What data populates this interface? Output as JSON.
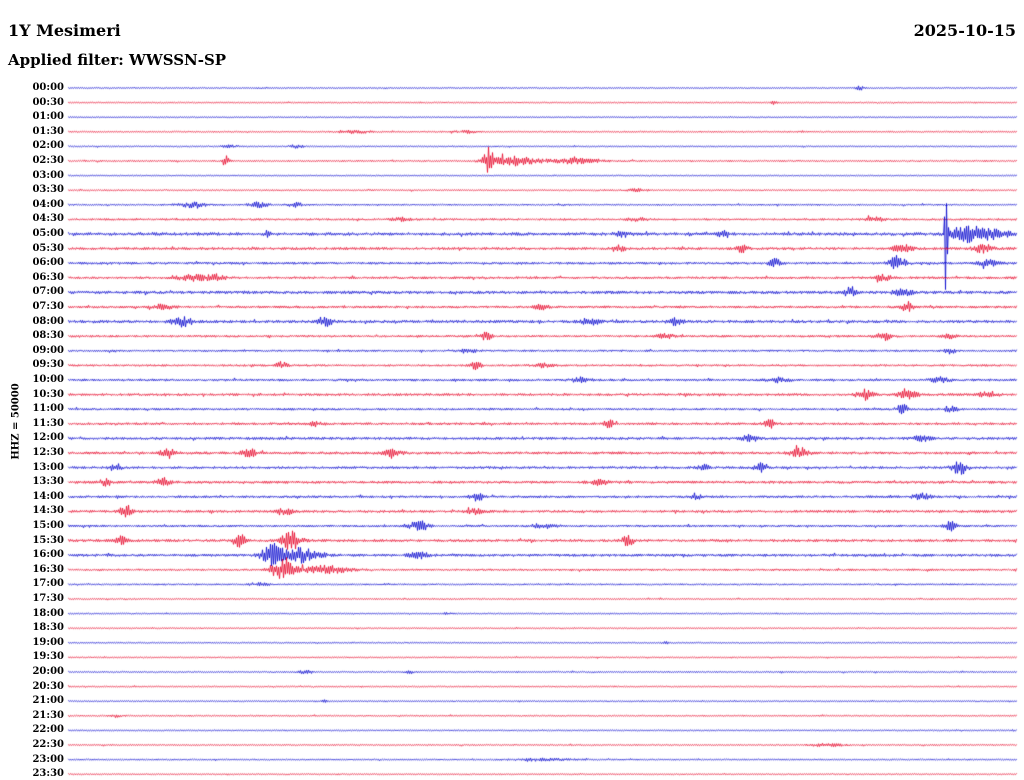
{
  "chart_data": {
    "type": "line",
    "title": "1Y Mesimeri",
    "date": "2025-10-15",
    "filter_label": "Applied filter: WWSSN-SP",
    "scale_label": "HHZ = 50000",
    "row_minutes": 30,
    "start_time": "00:00",
    "end_time": "24:00",
    "legend": "none",
    "grid": "off",
    "colors": {
      "blue": "#0000cd",
      "red": "#e60026"
    },
    "rows": [
      {
        "time": "00:00",
        "color": "blue",
        "noise": 0.6,
        "events": [
          {
            "pos": 0.835,
            "amp": 2.5,
            "width": 0.004
          }
        ]
      },
      {
        "time": "00:30",
        "color": "red",
        "noise": 0.6,
        "events": [
          {
            "pos": 0.745,
            "amp": 3,
            "width": 0.003
          }
        ]
      },
      {
        "time": "01:00",
        "color": "blue",
        "noise": 0.5,
        "events": []
      },
      {
        "time": "01:30",
        "color": "red",
        "noise": 0.7,
        "events": [
          {
            "pos": 0.3,
            "amp": 1.3,
            "width": 0.02
          },
          {
            "pos": 0.42,
            "amp": 1.3,
            "width": 0.012
          }
        ]
      },
      {
        "time": "02:00",
        "color": "blue",
        "noise": 0.6,
        "events": [
          {
            "pos": 0.17,
            "amp": 1.2,
            "width": 0.01
          },
          {
            "pos": 0.24,
            "amp": 1.4,
            "width": 0.008
          }
        ]
      },
      {
        "time": "02:30",
        "color": "red",
        "noise": 0.8,
        "events": [
          {
            "pos": 0.166,
            "amp": 5,
            "width": 0.004
          },
          {
            "pos": 0.443,
            "amp": 13,
            "width": 0.006
          },
          {
            "pos": 0.47,
            "amp": 5,
            "width": 0.02
          },
          {
            "pos": 0.53,
            "amp": 2.5,
            "width": 0.03
          }
        ]
      },
      {
        "time": "03:00",
        "color": "blue",
        "noise": 0.5,
        "events": []
      },
      {
        "time": "03:30",
        "color": "red",
        "noise": 0.7,
        "events": [
          {
            "pos": 0.6,
            "amp": 1.2,
            "width": 0.01
          }
        ]
      },
      {
        "time": "04:00",
        "color": "blue",
        "noise": 0.8,
        "events": [
          {
            "pos": 0.13,
            "amp": 2.5,
            "width": 0.015
          },
          {
            "pos": 0.2,
            "amp": 2.5,
            "width": 0.01
          },
          {
            "pos": 0.24,
            "amp": 2,
            "width": 0.008
          }
        ]
      },
      {
        "time": "04:30",
        "color": "red",
        "noise": 1.0,
        "events": [
          {
            "pos": 0.35,
            "amp": 2,
            "width": 0.01
          },
          {
            "pos": 0.6,
            "amp": 1.5,
            "width": 0.01
          },
          {
            "pos": 0.85,
            "amp": 2,
            "width": 0.01
          }
        ]
      },
      {
        "time": "05:00",
        "color": "blue",
        "noise": 1.5,
        "events": [
          {
            "pos": 0.21,
            "amp": 3,
            "width": 0.004
          },
          {
            "pos": 0.585,
            "amp": 2.5,
            "width": 0.008
          },
          {
            "pos": 0.69,
            "amp": 3,
            "width": 0.006
          },
          {
            "pos": 0.926,
            "amp": 130,
            "width": 0.0015
          },
          {
            "pos": 0.945,
            "amp": 8,
            "width": 0.012
          },
          {
            "pos": 0.97,
            "amp": 6,
            "width": 0.02
          }
        ]
      },
      {
        "time": "05:30",
        "color": "red",
        "noise": 1.3,
        "events": [
          {
            "pos": 0.58,
            "amp": 3.5,
            "width": 0.006
          },
          {
            "pos": 0.71,
            "amp": 3.5,
            "width": 0.006
          },
          {
            "pos": 0.88,
            "amp": 4,
            "width": 0.01
          },
          {
            "pos": 0.965,
            "amp": 4,
            "width": 0.01
          }
        ]
      },
      {
        "time": "06:00",
        "color": "blue",
        "noise": 1.2,
        "events": [
          {
            "pos": 0.745,
            "amp": 4,
            "width": 0.006
          },
          {
            "pos": 0.875,
            "amp": 8,
            "width": 0.008
          },
          {
            "pos": 0.97,
            "amp": 3,
            "width": 0.01
          }
        ]
      },
      {
        "time": "06:30",
        "color": "red",
        "noise": 1.2,
        "events": [
          {
            "pos": 0.13,
            "amp": 3,
            "width": 0.015
          },
          {
            "pos": 0.155,
            "amp": 3,
            "width": 0.01
          },
          {
            "pos": 0.86,
            "amp": 3,
            "width": 0.008
          }
        ]
      },
      {
        "time": "07:00",
        "color": "blue",
        "noise": 1.5,
        "events": [
          {
            "pos": 0.825,
            "amp": 5,
            "width": 0.006
          },
          {
            "pos": 0.88,
            "amp": 3,
            "width": 0.01
          }
        ]
      },
      {
        "time": "07:30",
        "color": "red",
        "noise": 1.2,
        "events": [
          {
            "pos": 0.1,
            "amp": 2.5,
            "width": 0.01
          },
          {
            "pos": 0.5,
            "amp": 2.5,
            "width": 0.008
          },
          {
            "pos": 0.885,
            "amp": 6,
            "width": 0.005
          }
        ]
      },
      {
        "time": "08:00",
        "color": "blue",
        "noise": 1.4,
        "events": [
          {
            "pos": 0.12,
            "amp": 5,
            "width": 0.01
          },
          {
            "pos": 0.27,
            "amp": 5,
            "width": 0.008
          },
          {
            "pos": 0.55,
            "amp": 3,
            "width": 0.01
          },
          {
            "pos": 0.64,
            "amp": 3,
            "width": 0.008
          }
        ]
      },
      {
        "time": "08:30",
        "color": "red",
        "noise": 1.1,
        "events": [
          {
            "pos": 0.44,
            "amp": 4,
            "width": 0.006
          },
          {
            "pos": 0.63,
            "amp": 2.5,
            "width": 0.008
          },
          {
            "pos": 0.86,
            "amp": 4,
            "width": 0.008
          },
          {
            "pos": 0.93,
            "amp": 3,
            "width": 0.006
          }
        ]
      },
      {
        "time": "09:00",
        "color": "blue",
        "noise": 1.0,
        "events": [
          {
            "pos": 0.42,
            "amp": 2,
            "width": 0.01
          },
          {
            "pos": 0.93,
            "amp": 3,
            "width": 0.005
          }
        ]
      },
      {
        "time": "09:30",
        "color": "red",
        "noise": 1.0,
        "events": [
          {
            "pos": 0.225,
            "amp": 3.5,
            "width": 0.006
          },
          {
            "pos": 0.43,
            "amp": 4,
            "width": 0.005
          },
          {
            "pos": 0.5,
            "amp": 2,
            "width": 0.01
          }
        ]
      },
      {
        "time": "10:00",
        "color": "blue",
        "noise": 1.2,
        "events": [
          {
            "pos": 0.54,
            "amp": 3,
            "width": 0.008
          },
          {
            "pos": 0.75,
            "amp": 2.5,
            "width": 0.01
          },
          {
            "pos": 0.92,
            "amp": 2.5,
            "width": 0.01
          }
        ]
      },
      {
        "time": "10:30",
        "color": "red",
        "noise": 1.2,
        "events": [
          {
            "pos": 0.84,
            "amp": 6,
            "width": 0.008
          },
          {
            "pos": 0.885,
            "amp": 4,
            "width": 0.01
          },
          {
            "pos": 0.97,
            "amp": 3,
            "width": 0.01
          }
        ]
      },
      {
        "time": "11:00",
        "color": "blue",
        "noise": 1.1,
        "events": [
          {
            "pos": 0.88,
            "amp": 5,
            "width": 0.006
          },
          {
            "pos": 0.93,
            "amp": 3,
            "width": 0.008
          }
        ]
      },
      {
        "time": "11:30",
        "color": "red",
        "noise": 1.2,
        "events": [
          {
            "pos": 0.26,
            "amp": 2.5,
            "width": 0.008
          },
          {
            "pos": 0.57,
            "amp": 3.5,
            "width": 0.006
          },
          {
            "pos": 0.74,
            "amp": 4,
            "width": 0.006
          }
        ]
      },
      {
        "time": "12:00",
        "color": "blue",
        "noise": 1.3,
        "events": [
          {
            "pos": 0.72,
            "amp": 4,
            "width": 0.008
          },
          {
            "pos": 0.9,
            "amp": 2.5,
            "width": 0.01
          }
        ]
      },
      {
        "time": "12:30",
        "color": "red",
        "noise": 1.3,
        "events": [
          {
            "pos": 0.105,
            "amp": 5,
            "width": 0.008
          },
          {
            "pos": 0.19,
            "amp": 4,
            "width": 0.008
          },
          {
            "pos": 0.34,
            "amp": 3,
            "width": 0.01
          },
          {
            "pos": 0.77,
            "amp": 4,
            "width": 0.01
          }
        ]
      },
      {
        "time": "13:00",
        "color": "blue",
        "noise": 1.2,
        "events": [
          {
            "pos": 0.05,
            "amp": 3.5,
            "width": 0.006
          },
          {
            "pos": 0.67,
            "amp": 3,
            "width": 0.006
          },
          {
            "pos": 0.73,
            "amp": 4.5,
            "width": 0.006
          },
          {
            "pos": 0.94,
            "amp": 7,
            "width": 0.008
          }
        ]
      },
      {
        "time": "13:30",
        "color": "red",
        "noise": 1.3,
        "events": [
          {
            "pos": 0.04,
            "amp": 4,
            "width": 0.006
          },
          {
            "pos": 0.1,
            "amp": 4,
            "width": 0.008
          },
          {
            "pos": 0.56,
            "amp": 2.5,
            "width": 0.01
          }
        ]
      },
      {
        "time": "14:00",
        "color": "blue",
        "noise": 1.2,
        "events": [
          {
            "pos": 0.43,
            "amp": 4,
            "width": 0.006
          },
          {
            "pos": 0.66,
            "amp": 3.5,
            "width": 0.006
          },
          {
            "pos": 0.9,
            "amp": 4,
            "width": 0.008
          }
        ]
      },
      {
        "time": "14:30",
        "color": "red",
        "noise": 1.2,
        "events": [
          {
            "pos": 0.06,
            "amp": 6,
            "width": 0.006
          },
          {
            "pos": 0.23,
            "amp": 3.5,
            "width": 0.008
          },
          {
            "pos": 0.43,
            "amp": 2.5,
            "width": 0.01
          }
        ]
      },
      {
        "time": "15:00",
        "color": "blue",
        "noise": 1.1,
        "events": [
          {
            "pos": 0.37,
            "amp": 5,
            "width": 0.01
          },
          {
            "pos": 0.5,
            "amp": 2.5,
            "width": 0.01
          },
          {
            "pos": 0.93,
            "amp": 4.5,
            "width": 0.006
          }
        ]
      },
      {
        "time": "15:30",
        "color": "red",
        "noise": 1.3,
        "events": [
          {
            "pos": 0.055,
            "amp": 4,
            "width": 0.006
          },
          {
            "pos": 0.18,
            "amp": 7,
            "width": 0.006
          },
          {
            "pos": 0.235,
            "amp": 9,
            "width": 0.01
          },
          {
            "pos": 0.59,
            "amp": 5,
            "width": 0.006
          }
        ]
      },
      {
        "time": "16:00",
        "color": "blue",
        "noise": 1.3,
        "events": [
          {
            "pos": 0.215,
            "amp": 13,
            "width": 0.01
          },
          {
            "pos": 0.245,
            "amp": 7,
            "width": 0.02
          },
          {
            "pos": 0.37,
            "amp": 3,
            "width": 0.01
          }
        ]
      },
      {
        "time": "16:30",
        "color": "red",
        "noise": 1.0,
        "events": [
          {
            "pos": 0.225,
            "amp": 10,
            "width": 0.012
          },
          {
            "pos": 0.27,
            "amp": 4,
            "width": 0.025
          }
        ]
      },
      {
        "time": "17:00",
        "color": "blue",
        "noise": 0.8,
        "events": [
          {
            "pos": 0.2,
            "amp": 1.5,
            "width": 0.01
          }
        ]
      },
      {
        "time": "17:30",
        "color": "red",
        "noise": 0.7,
        "events": []
      },
      {
        "time": "18:00",
        "color": "blue",
        "noise": 0.6,
        "events": [
          {
            "pos": 0.4,
            "amp": 1,
            "width": 0.005
          }
        ]
      },
      {
        "time": "18:30",
        "color": "red",
        "noise": 0.6,
        "events": []
      },
      {
        "time": "19:00",
        "color": "blue",
        "noise": 0.6,
        "events": [
          {
            "pos": 0.63,
            "amp": 1,
            "width": 0.005
          }
        ]
      },
      {
        "time": "19:30",
        "color": "red",
        "noise": 0.6,
        "events": []
      },
      {
        "time": "20:00",
        "color": "blue",
        "noise": 0.7,
        "events": [
          {
            "pos": 0.25,
            "amp": 1.5,
            "width": 0.008
          },
          {
            "pos": 0.36,
            "amp": 1.2,
            "width": 0.006
          }
        ]
      },
      {
        "time": "20:30",
        "color": "red",
        "noise": 0.6,
        "events": []
      },
      {
        "time": "21:00",
        "color": "blue",
        "noise": 0.6,
        "events": [
          {
            "pos": 0.27,
            "amp": 1,
            "width": 0.004
          }
        ]
      },
      {
        "time": "21:30",
        "color": "red",
        "noise": 0.7,
        "events": [
          {
            "pos": 0.05,
            "amp": 1.5,
            "width": 0.006
          }
        ]
      },
      {
        "time": "22:00",
        "color": "blue",
        "noise": 0.6,
        "events": []
      },
      {
        "time": "22:30",
        "color": "red",
        "noise": 0.7,
        "events": [
          {
            "pos": 0.8,
            "amp": 1.2,
            "width": 0.02
          }
        ]
      },
      {
        "time": "23:00",
        "color": "blue",
        "noise": 0.7,
        "events": [
          {
            "pos": 0.5,
            "amp": 1.2,
            "width": 0.03
          }
        ]
      },
      {
        "time": "23:30",
        "color": "red",
        "noise": 0.6,
        "events": []
      }
    ]
  }
}
